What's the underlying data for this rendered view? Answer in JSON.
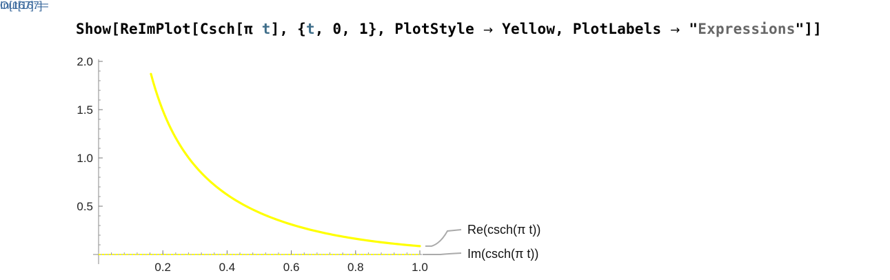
{
  "cell": {
    "in_label": "In[167]:=",
    "out_label": "Out[167]="
  },
  "input": {
    "tokens": [
      {
        "text": "Show",
        "kind": "sym"
      },
      {
        "text": "[",
        "kind": "sym"
      },
      {
        "text": "ReImPlot",
        "kind": "sym"
      },
      {
        "text": "[",
        "kind": "sym"
      },
      {
        "text": "Csch",
        "kind": "sym"
      },
      {
        "text": "[",
        "kind": "sym"
      },
      {
        "text": "π ",
        "kind": "sym"
      },
      {
        "text": "t",
        "kind": "var"
      },
      {
        "text": "], {",
        "kind": "sym"
      },
      {
        "text": "t",
        "kind": "var"
      },
      {
        "text": ", 0, 1}, PlotStyle ",
        "kind": "sym"
      },
      {
        "text": "→",
        "kind": "arrow"
      },
      {
        "text": " Yellow, PlotLabels ",
        "kind": "sym"
      },
      {
        "text": "→",
        "kind": "arrow"
      },
      {
        "text": " \"",
        "kind": "sym"
      },
      {
        "text": "Expressions",
        "kind": "str"
      },
      {
        "text": "\"]]",
        "kind": "sym"
      }
    ]
  },
  "chart_data": {
    "type": "line",
    "xlim": [
      0.0,
      1.0
    ],
    "ylim": [
      0.0,
      2.0
    ],
    "x_ticks": [
      "0.2",
      "0.4",
      "0.6",
      "0.8",
      "1.0"
    ],
    "y_ticks": [
      "0.5",
      "1.0",
      "1.5",
      "2.0"
    ],
    "x_tick_values": [
      0.2,
      0.4,
      0.6,
      0.8,
      1.0
    ],
    "y_tick_values": [
      0.5,
      1.0,
      1.5,
      2.0
    ],
    "grid": false,
    "series_color": "#ffff00",
    "label_line_color": "#aaaaaa",
    "series": [
      {
        "name": "Re(csch(π t))",
        "x": [
          0.163,
          0.18,
          0.2,
          0.25,
          0.3,
          0.35,
          0.4,
          0.45,
          0.5,
          0.6,
          0.7,
          0.8,
          0.9,
          1.0
        ],
        "y": [
          1.852,
          1.665,
          1.488,
          1.151,
          0.925,
          0.763,
          0.64,
          0.544,
          0.434,
          0.344,
          0.24,
          0.169,
          0.118,
          0.087
        ]
      },
      {
        "name": "Im(csch(π t))",
        "x": [
          0.0,
          1.0
        ],
        "y": [
          0.0,
          0.0
        ]
      }
    ]
  }
}
